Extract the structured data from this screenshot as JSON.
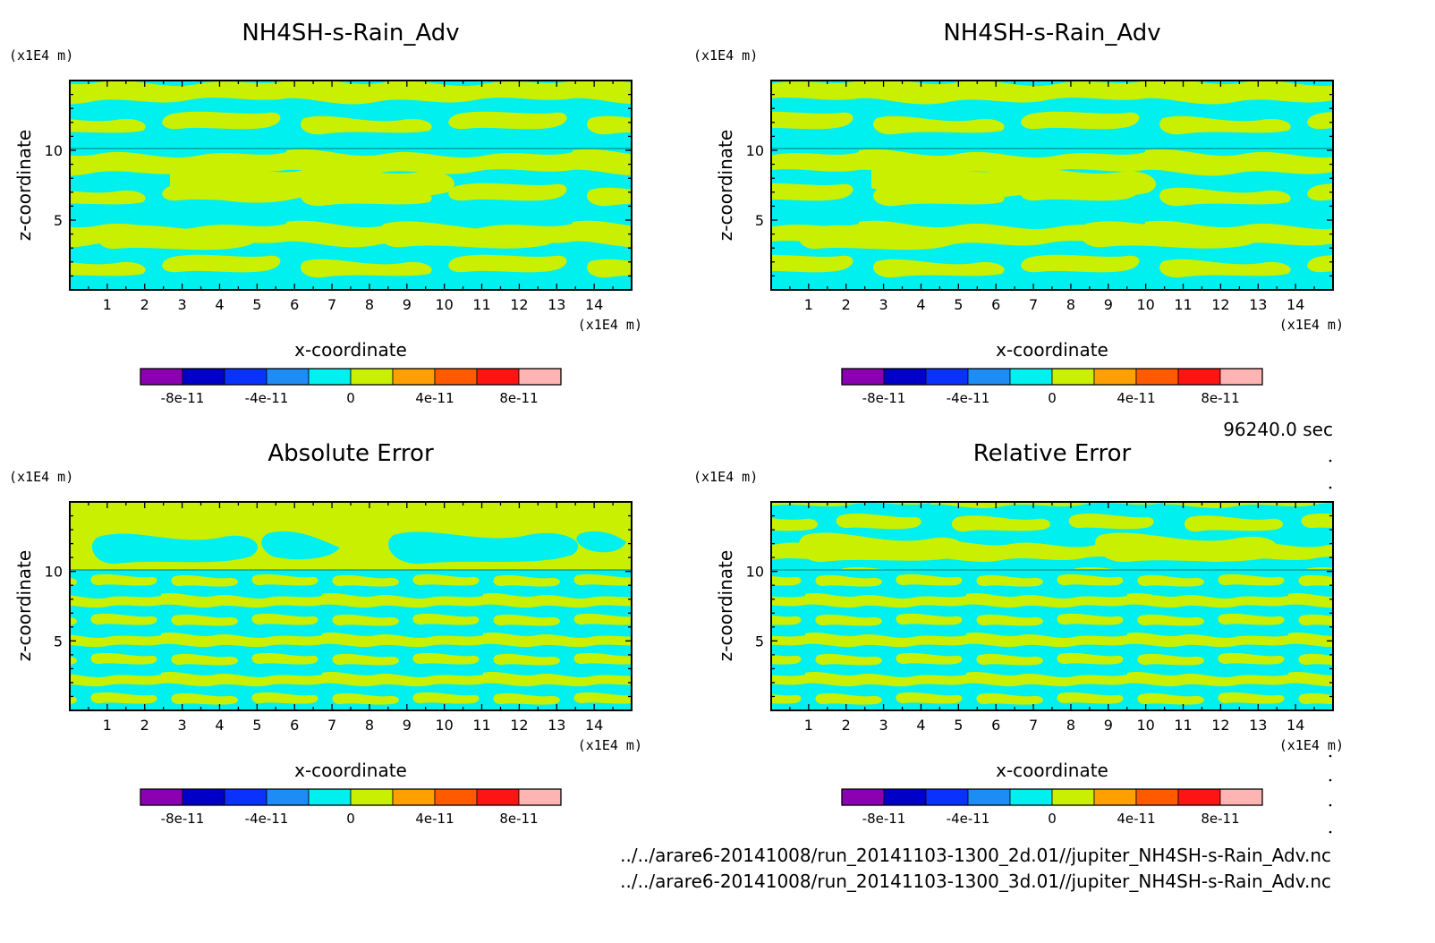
{
  "figure": {
    "time_label": "96240.0 sec",
    "file_lines": [
      "../../arare6-20141008/run_20141103-1300_2d.01//jupiter_NH4SH-s-Rain_Adv.nc",
      "../../arare6-20141008/run_20141103-1300_3d.01//jupiter_NH4SH-s-Rain_Adv.nc"
    ]
  },
  "colorbar": {
    "colors": [
      "#8b00b0",
      "#0000c8",
      "#0a32ff",
      "#1e8cf5",
      "#00f0f0",
      "#c8f000",
      "#ffa000",
      "#ff5a00",
      "#ff1414",
      "#ffb4b4"
    ],
    "tick_labels": [
      "-8e-11",
      "-4e-11",
      "0",
      "4e-11",
      "8e-11"
    ]
  },
  "chart_data": [
    {
      "type": "heatmap",
      "title": "NH4SH-s-Rain_Adv",
      "xlabel": "x-coordinate",
      "ylabel": "z-coordinate",
      "x_unit": "(x1E4 m)",
      "y_unit": "(x1E4 m)",
      "xlim": [
        0,
        15
      ],
      "ylim": [
        0,
        15
      ],
      "x_ticks": [
        1,
        2,
        3,
        4,
        5,
        6,
        7,
        8,
        9,
        10,
        11,
        12,
        13,
        14
      ],
      "y_ticks": [
        5,
        10
      ],
      "levels": [
        -1e-10,
        -8e-11,
        -6e-11,
        -4e-11,
        -2e-11,
        0,
        2e-11,
        4e-11,
        6e-11,
        8e-11,
        1e-10
      ],
      "field_note": "values within [-2e-11, 2e-11]; cyan = slightly negative, yellow-green = slightly positive"
    },
    {
      "type": "heatmap",
      "title": "NH4SH-s-Rain_Adv",
      "xlabel": "x-coordinate",
      "ylabel": "z-coordinate",
      "x_unit": "(x1E4 m)",
      "y_unit": "(x1E4 m)",
      "xlim": [
        0,
        15
      ],
      "ylim": [
        0,
        15
      ],
      "x_ticks": [
        1,
        2,
        3,
        4,
        5,
        6,
        7,
        8,
        9,
        10,
        11,
        12,
        13,
        14
      ],
      "y_ticks": [
        5,
        10
      ],
      "levels": [
        -1e-10,
        -8e-11,
        -6e-11,
        -4e-11,
        -2e-11,
        0,
        2e-11,
        4e-11,
        6e-11,
        8e-11,
        1e-10
      ],
      "field_note": "values within [-2e-11, 2e-11]"
    },
    {
      "type": "heatmap",
      "title": "Absolute Error",
      "xlabel": "x-coordinate",
      "ylabel": "z-coordinate",
      "x_unit": "(x1E4 m)",
      "y_unit": "(x1E4 m)",
      "xlim": [
        0,
        15
      ],
      "ylim": [
        0,
        15
      ],
      "x_ticks": [
        1,
        2,
        3,
        4,
        5,
        6,
        7,
        8,
        9,
        10,
        11,
        12,
        13,
        14
      ],
      "y_ticks": [
        5,
        10
      ],
      "levels": [
        -1e-10,
        -8e-11,
        -6e-11,
        -4e-11,
        -2e-11,
        0,
        2e-11,
        4e-11,
        6e-11,
        8e-11,
        1e-10
      ],
      "field_note": "values within [-2e-11, 2e-11]"
    },
    {
      "type": "heatmap",
      "title": "Relative Error",
      "xlabel": "x-coordinate",
      "ylabel": "z-coordinate",
      "x_unit": "(x1E4 m)",
      "y_unit": "(x1E4 m)",
      "xlim": [
        0,
        15
      ],
      "ylim": [
        0,
        15
      ],
      "x_ticks": [
        1,
        2,
        3,
        4,
        5,
        6,
        7,
        8,
        9,
        10,
        11,
        12,
        13,
        14
      ],
      "y_ticks": [
        5,
        10
      ],
      "levels": [
        -1e-10,
        -8e-11,
        -6e-11,
        -4e-11,
        -2e-11,
        0,
        2e-11,
        4e-11,
        6e-11,
        8e-11,
        1e-10
      ],
      "field_note": "values within [-2e-11, 2e-11]"
    }
  ]
}
